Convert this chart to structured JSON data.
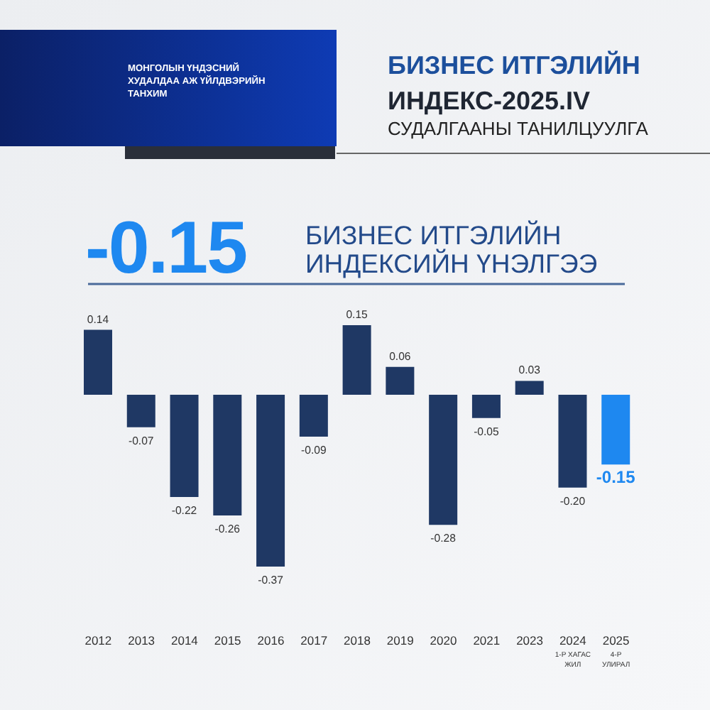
{
  "chart_data": {
    "type": "bar",
    "title": "БИЗНЕС ИТГЭЛИЙН\nИНДЕКС-2025.IV",
    "subtitle": "СУДАЛГААНЫ ТАНИЛЦУУЛГА",
    "annotations": [
      "МОНГОЛЫН ҮНДЭСНИЙ\nХУДАЛДАА АЖ ҮЙЛДВЭРИЙН\nТАНХИМ",
      "-0.15",
      "БИЗНЕС ИТГЭЛИЙН\nИНДЕКСИЙН ҮНЭЛГЭЭ"
    ],
    "categories": [
      "2012",
      "2013",
      "2014",
      "2015",
      "2016",
      "2017",
      "2018",
      "2019",
      "2020",
      "2021",
      "2023",
      "2024\n1-Р ХАГАС\nЖИЛ",
      "2025\n4-Р\nУЛИРАЛ"
    ],
    "values": [
      0.14,
      -0.07,
      -0.22,
      -0.26,
      -0.37,
      -0.09,
      0.15,
      0.06,
      -0.28,
      -0.05,
      0.03,
      -0.2,
      -0.15
    ],
    "colors": [
      "#1f3864",
      "#1f3864",
      "#1f3864",
      "#1f3864",
      "#1f3864",
      "#1f3864",
      "#1f3864",
      "#1f3864",
      "#1f3864",
      "#1f3864",
      "#1f3864",
      "#1f3864",
      "#1e88f0"
    ],
    "value_labels": [
      "0.14",
      "-0.07",
      "-0.22",
      "-0.26",
      "-0.37",
      "-0.09",
      "0.15",
      "0.06",
      "-0.28",
      "-0.05",
      "0.03",
      "-0.20",
      "-0.15"
    ]
  }
}
